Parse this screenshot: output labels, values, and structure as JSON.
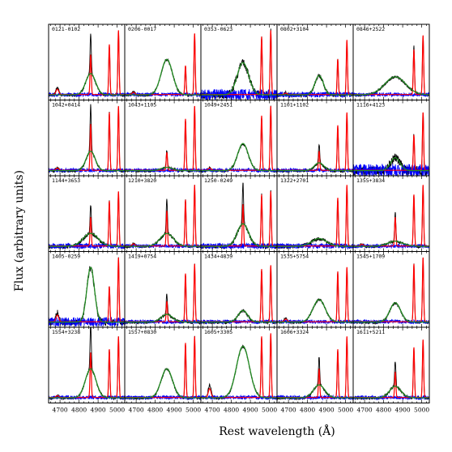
{
  "chart_data": {
    "type": "line",
    "xlabel": "Rest wavelength (Å)",
    "ylabel": "Flux (arbitrary units)",
    "xlim": [
      4640,
      5040
    ],
    "x_ticks": [
      4700,
      4800,
      4900,
      5000
    ],
    "grid": false,
    "layout": {
      "rows": 5,
      "cols": 5
    },
    "line_centers": {
      "Hgamma_4686": 4686,
      "Hbeta": 4861,
      "OIII_4959": 4959,
      "OIII_5007": 5007
    },
    "colors": {
      "observed": "#000000",
      "narrow_lines": "#ff0000",
      "broad_Hbeta": "#228b22",
      "residual": "#0000ff"
    },
    "panels": [
      {
        "name": "0121-0102",
        "hb_peak": 0.62,
        "oiii": [
          0.78,
          1.0
        ],
        "broad": 0.33,
        "broad_width": 26,
        "hg": 0.12,
        "noise": 0.02
      },
      {
        "name": "0206-0017",
        "hb_peak": 0.0,
        "oiii": [
          0.45,
          0.95
        ],
        "broad": 0.55,
        "broad_width": 30,
        "hg": 0.05,
        "noise": 0.02
      },
      {
        "name": "0353-0623",
        "hb_peak": 0.0,
        "oiii": [
          0.9,
          1.0
        ],
        "broad": 0.5,
        "broad_width": 30,
        "hg": 0.0,
        "noise": 0.06
      },
      {
        "name": "0802+3104",
        "hb_peak": 0.0,
        "oiii": [
          0.55,
          0.85
        ],
        "broad": 0.3,
        "broad_width": 22,
        "hg": 0.03,
        "noise": 0.03
      },
      {
        "name": "0846+2522",
        "hb_peak": 0.0,
        "oiii": [
          0.7,
          0.92
        ],
        "broad": 0.28,
        "broad_width": 55,
        "hg": 0.0,
        "noise": 0.02
      },
      {
        "name": "1042+0414",
        "hb_peak": 0.72,
        "oiii": [
          0.9,
          1.0
        ],
        "broad": 0.3,
        "broad_width": 24,
        "hg": 0.05,
        "noise": 0.02
      },
      {
        "name": "1043+1105",
        "hb_peak": 0.28,
        "oiii": [
          0.8,
          1.0
        ],
        "broad": 0.05,
        "broad_width": 30,
        "hg": 0.0,
        "noise": 0.02
      },
      {
        "name": "1049+2451",
        "hb_peak": 0.0,
        "oiii": [
          0.85,
          1.0
        ],
        "broad": 0.42,
        "broad_width": 28,
        "hg": 0.05,
        "noise": 0.02
      },
      {
        "name": "1101+1102",
        "hb_peak": 0.3,
        "oiii": [
          0.7,
          0.9
        ],
        "broad": 0.12,
        "broad_width": 25,
        "hg": 0.0,
        "noise": 0.02
      },
      {
        "name": "1116+4123",
        "hb_peak": 0.0,
        "oiii": [
          0.55,
          0.9
        ],
        "broad": 0.2,
        "broad_width": 25,
        "hg": 0.0,
        "noise": 0.07
      },
      {
        "name": "1144+3653",
        "hb_peak": 0.45,
        "oiii": [
          0.7,
          0.85
        ],
        "broad": 0.2,
        "broad_width": 40,
        "hg": 0.0,
        "noise": 0.03
      },
      {
        "name": "1210+3820",
        "hb_peak": 0.55,
        "oiii": [
          0.72,
          0.95
        ],
        "broad": 0.2,
        "broad_width": 35,
        "hg": 0.05,
        "noise": 0.02
      },
      {
        "name": "1250-0249",
        "hb_peak": 0.65,
        "oiii": [
          0.8,
          0.85
        ],
        "broad": 0.35,
        "broad_width": 30,
        "hg": 0.0,
        "noise": 0.03
      },
      {
        "name": "1322+2701",
        "hb_peak": 0.0,
        "oiii": [
          0.75,
          0.95
        ],
        "broad": 0.12,
        "broad_width": 40,
        "hg": 0.0,
        "noise": 0.03
      },
      {
        "name": "1355+3834",
        "hb_peak": 0.45,
        "oiii": [
          0.8,
          0.95
        ],
        "broad": 0.08,
        "broad_width": 40,
        "hg": 0.04,
        "noise": 0.02
      },
      {
        "name": "1405-0259",
        "hb_peak": 0.0,
        "oiii": [
          0.55,
          1.0
        ],
        "broad": 0.85,
        "broad_width": 20,
        "hg": 0.15,
        "noise": 0.05
      },
      {
        "name": "1419+0754",
        "hb_peak": 0.32,
        "oiii": [
          0.75,
          0.9
        ],
        "broad": 0.12,
        "broad_width": 30,
        "hg": 0.0,
        "noise": 0.02
      },
      {
        "name": "1434+4839",
        "hb_peak": 0.0,
        "oiii": [
          0.82,
          0.88
        ],
        "broad": 0.18,
        "broad_width": 25,
        "hg": 0.0,
        "noise": 0.02
      },
      {
        "name": "1535+5754",
        "hb_peak": 0.0,
        "oiii": [
          0.78,
          0.85
        ],
        "broad": 0.35,
        "broad_width": 32,
        "hg": 0.06,
        "noise": 0.02
      },
      {
        "name": "1545+1709",
        "hb_peak": 0.0,
        "oiii": [
          0.9,
          1.0
        ],
        "broad": 0.3,
        "broad_width": 28,
        "hg": 0.0,
        "noise": 0.02
      },
      {
        "name": "1554+3238",
        "hb_peak": 0.7,
        "oiii": [
          0.75,
          0.95
        ],
        "broad": 0.45,
        "broad_width": 28,
        "hg": 0.04,
        "noise": 0.02
      },
      {
        "name": "1557+0830",
        "hb_peak": 0.0,
        "oiii": [
          0.85,
          0.95
        ],
        "broad": 0.45,
        "broad_width": 30,
        "hg": 0.0,
        "noise": 0.02
      },
      {
        "name": "1605+3305",
        "hb_peak": 0.0,
        "oiii": [
          0.95,
          1.0
        ],
        "broad": 0.8,
        "broad_width": 34,
        "hg": 0.2,
        "noise": 0.02
      },
      {
        "name": "1606+3324",
        "hb_peak": 0.45,
        "oiii": [
          0.75,
          0.95
        ],
        "broad": 0.2,
        "broad_width": 30,
        "hg": 0.0,
        "noise": 0.02
      },
      {
        "name": "1611+5211",
        "hb_peak": 0.4,
        "oiii": [
          0.78,
          0.9
        ],
        "broad": 0.18,
        "broad_width": 30,
        "hg": 0.0,
        "noise": 0.02
      }
    ]
  }
}
